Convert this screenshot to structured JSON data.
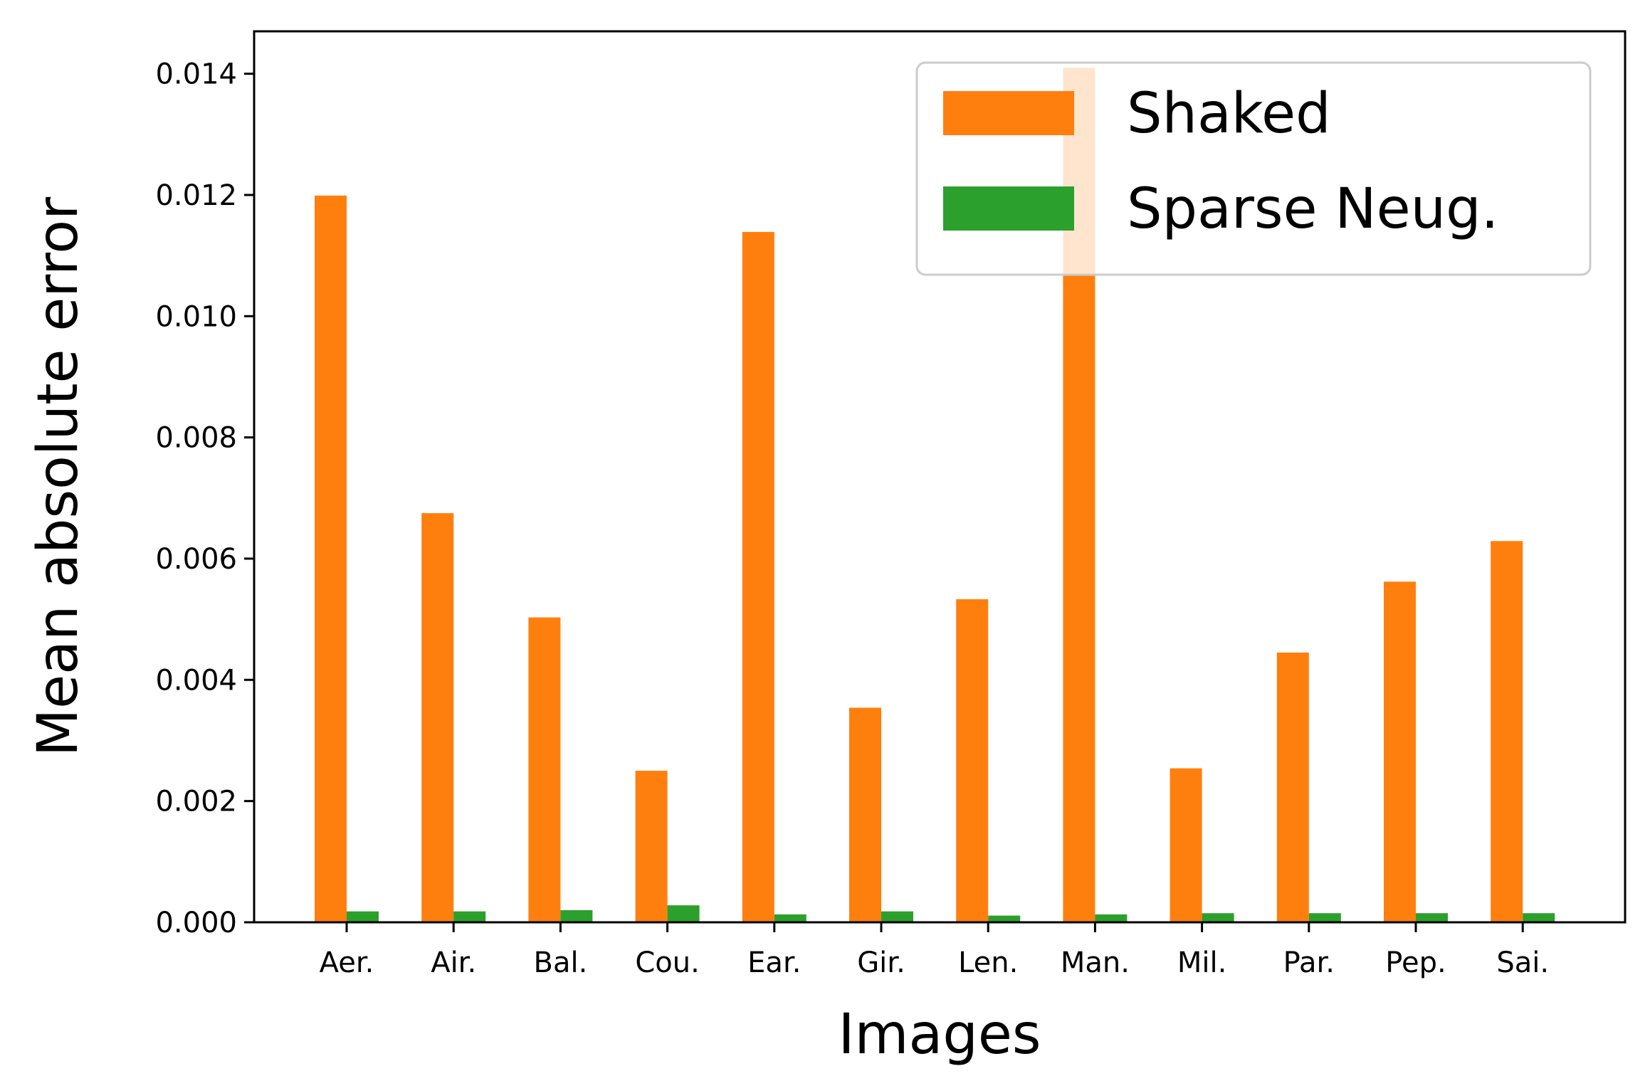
{
  "chart_data": {
    "type": "bar",
    "title": "",
    "xlabel": "Images",
    "ylabel": "Mean absolute error",
    "categories": [
      "Aer.",
      "Air.",
      "Bal.",
      "Cou.",
      "Ear.",
      "Gir.",
      "Len.",
      "Man.",
      "Mil.",
      "Par.",
      "Pep.",
      "Sai."
    ],
    "series": [
      {
        "name": "Shaked",
        "color": "#ff7f0e",
        "values": [
          0.01199,
          0.00675,
          0.00503,
          0.0025,
          0.01139,
          0.00354,
          0.00533,
          0.0141,
          0.00254,
          0.00445,
          0.00562,
          0.00629
        ]
      },
      {
        "name": "Sparse Neug.",
        "color": "#2ca02c",
        "values": [
          0.00018,
          0.00018,
          0.0002,
          0.00028,
          0.00013,
          0.00018,
          0.00011,
          0.00013,
          0.00015,
          0.00015,
          0.00015,
          0.00015
        ]
      }
    ],
    "ylim": [
      0,
      0.0147
    ],
    "yticks": [
      "0.000",
      "0.002",
      "0.004",
      "0.006",
      "0.008",
      "0.010",
      "0.012",
      "0.014"
    ],
    "legend": "top-right",
    "grid": false
  }
}
